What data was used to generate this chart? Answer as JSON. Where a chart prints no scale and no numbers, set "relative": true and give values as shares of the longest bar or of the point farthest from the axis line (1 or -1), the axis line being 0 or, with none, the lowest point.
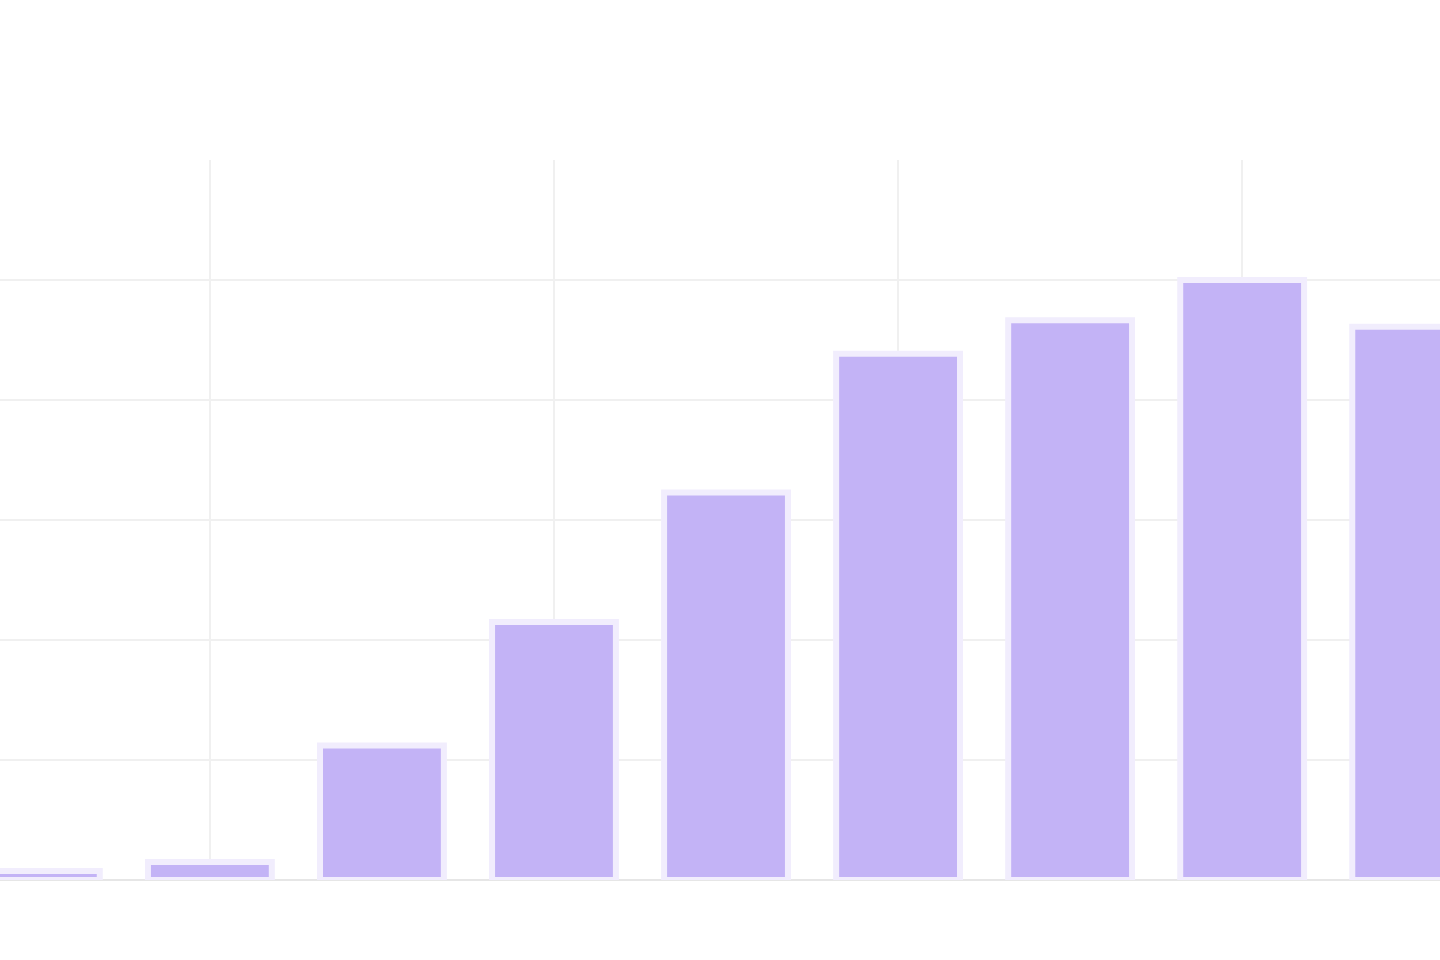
{
  "chart_data": {
    "type": "bar",
    "relative": true,
    "grid": true,
    "categories": [
      null,
      null,
      null,
      null,
      null,
      null,
      null,
      null,
      null
    ],
    "color": "#c3b3f6",
    "values": [
      0.015,
      0.03,
      0.224,
      0.43,
      0.646,
      0.877,
      0.933,
      1,
      0.922
    ]
  }
}
